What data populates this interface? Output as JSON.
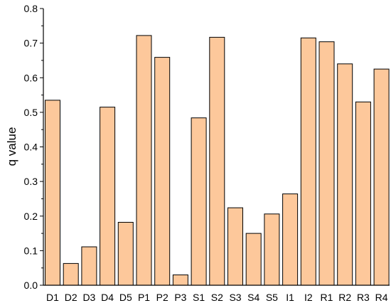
{
  "chart_data": {
    "type": "bar",
    "title": "",
    "xlabel": "",
    "ylabel": "q value",
    "ylim": [
      0,
      0.8
    ],
    "yticks": [
      "0.0",
      "0.1",
      "0.2",
      "0.3",
      "0.4",
      "0.5",
      "0.6",
      "0.7",
      "0.8"
    ],
    "ytick_values": [
      0,
      0.1,
      0.2,
      0.3,
      0.4,
      0.5,
      0.6,
      0.7,
      0.8
    ],
    "categories": [
      "D1",
      "D2",
      "D3",
      "D4",
      "D5",
      "P1",
      "P2",
      "P3",
      "S1",
      "S2",
      "S3",
      "S4",
      "S5",
      "I1",
      "I2",
      "R1",
      "R2",
      "R3",
      "R4"
    ],
    "values": [
      0.535,
      0.063,
      0.111,
      0.515,
      0.182,
      0.722,
      0.659,
      0.03,
      0.484,
      0.717,
      0.224,
      0.15,
      0.206,
      0.264,
      0.715,
      0.704,
      0.64,
      0.53,
      0.625
    ],
    "bar_color": "#fdc89b",
    "edge_color": "#000000",
    "grid": false,
    "legend": "none"
  }
}
